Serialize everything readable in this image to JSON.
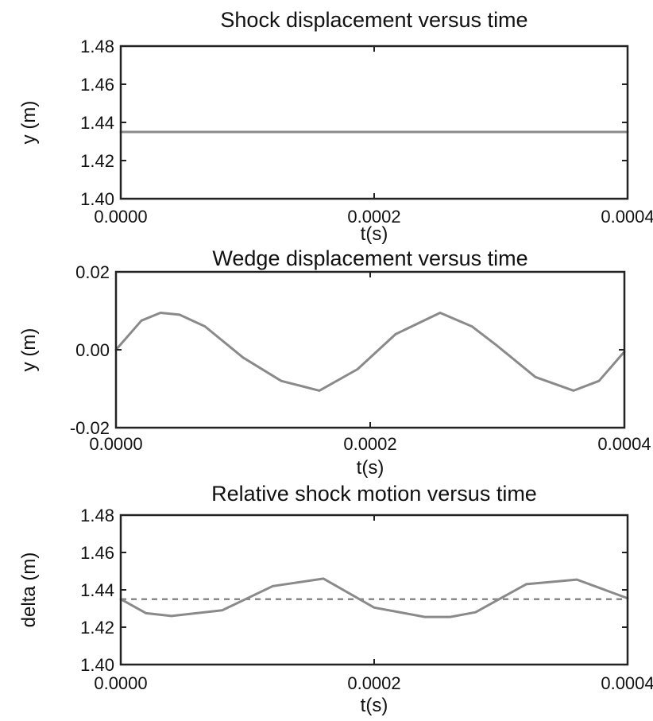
{
  "chart_data": [
    {
      "type": "line",
      "title": "Shock displacement versus time",
      "xlabel": "t(s)",
      "ylabel": "y (m)",
      "xlim": [
        0,
        0.0004
      ],
      "ylim": [
        1.4,
        1.48
      ],
      "xticks": [
        "0.0000",
        "0.0002",
        "0.0004"
      ],
      "yticks": [
        "1.40",
        "1.42",
        "1.44",
        "1.46",
        "1.48"
      ],
      "grid": false,
      "series": [
        {
          "style": "solid",
          "color": "#8a8a8a",
          "x": [
            0,
            5e-05,
            0.0001,
            0.00015,
            0.0002,
            0.00025,
            0.0003,
            0.00035,
            0.0004
          ],
          "y": [
            1.435,
            1.435,
            1.435,
            1.435,
            1.435,
            1.435,
            1.435,
            1.435,
            1.435
          ]
        }
      ]
    },
    {
      "type": "line",
      "title": "Wedge displacement versus time",
      "xlabel": "t(s)",
      "ylabel": "y (m)",
      "xlim": [
        0,
        0.0004
      ],
      "ylim": [
        -0.02,
        0.02
      ],
      "xticks": [
        "0.0000",
        "0.0002",
        "0.0004"
      ],
      "yticks": [
        "-0.02",
        "0.00",
        "0.02"
      ],
      "grid": false,
      "series": [
        {
          "style": "solid",
          "color": "#8a8a8a",
          "x": [
            0,
            2e-05,
            3.5e-05,
            5e-05,
            7e-05,
            0.0001,
            0.00013,
            0.00016,
            0.00019,
            0.00022,
            0.000255,
            0.00028,
            0.0003,
            0.00033,
            0.00036,
            0.00038,
            0.0004
          ],
          "y": [
            0.0,
            0.0075,
            0.0095,
            0.009,
            0.006,
            -0.002,
            -0.008,
            -0.0105,
            -0.005,
            0.004,
            0.0095,
            0.006,
            0.001,
            -0.007,
            -0.0105,
            -0.008,
            -0.0005
          ]
        }
      ]
    },
    {
      "type": "line",
      "title": "Relative shock motion versus time",
      "xlabel": "t(s)",
      "ylabel": "delta (m)",
      "xlim": [
        0,
        0.0004
      ],
      "ylim": [
        1.4,
        1.48
      ],
      "xticks": [
        "0.0000",
        "0.0002",
        "0.0004"
      ],
      "yticks": [
        "1.40",
        "1.42",
        "1.44",
        "1.46",
        "1.48"
      ],
      "grid": false,
      "series": [
        {
          "style": "solid",
          "color": "#8a8a8a",
          "x": [
            0,
            2e-05,
            4e-05,
            8e-05,
            0.00012,
            0.00016,
            0.0002,
            0.00024,
            0.00026,
            0.00028,
            0.00032,
            0.00036,
            0.0004
          ],
          "y": [
            1.435,
            1.4275,
            1.426,
            1.429,
            1.442,
            1.446,
            1.4305,
            1.4255,
            1.4255,
            1.428,
            1.443,
            1.4455,
            1.4355
          ]
        },
        {
          "style": "dashed",
          "color": "#8a8a8a",
          "x": [
            0,
            0.0004
          ],
          "y": [
            1.435,
            1.435
          ]
        }
      ]
    }
  ]
}
